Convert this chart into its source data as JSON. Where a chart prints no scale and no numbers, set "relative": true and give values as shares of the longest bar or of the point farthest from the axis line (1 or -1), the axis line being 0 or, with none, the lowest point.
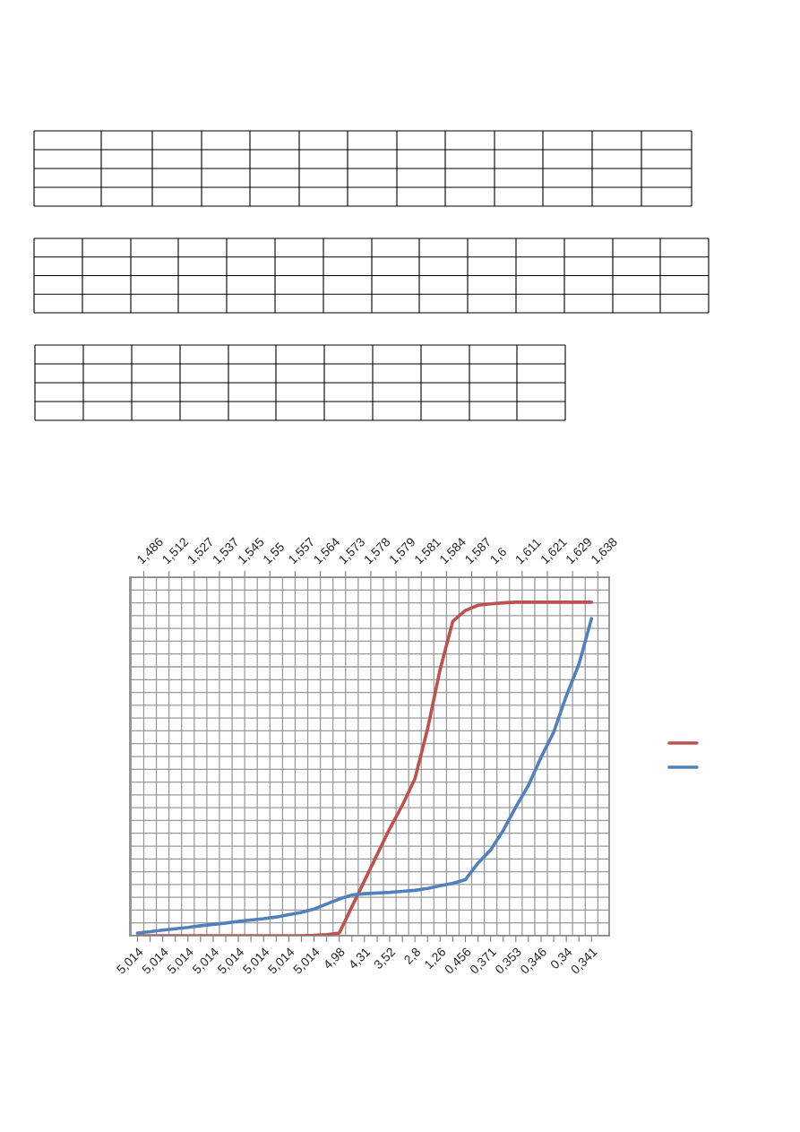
{
  "chart_data": {
    "type": "line",
    "relative": true,
    "categories": [
      "5,014",
      null,
      "5,014",
      null,
      "5,014",
      null,
      "5,014",
      null,
      "5,014",
      null,
      "5,014",
      null,
      "5,014",
      null,
      "5,014",
      null,
      "4,98",
      null,
      "4,31",
      null,
      "3,52",
      null,
      "2,8",
      null,
      "1,26",
      null,
      "0,456",
      null,
      "0,371",
      null,
      "0,353",
      null,
      "0,346",
      null,
      "0,34",
      null,
      "0,341"
    ],
    "annotations": [
      "1,486",
      "1,512",
      "1,527",
      "1,537",
      "1,545",
      "1,55",
      "1,557",
      "1,564",
      "1,573",
      "1,578",
      "1,579",
      "1,581",
      "1,584",
      "1,587",
      "1,6",
      "1,611",
      "1,621",
      "1,629",
      "1,638"
    ],
    "series": [
      {
        "color": "#c0504d",
        "values": [
          0,
          0,
          0,
          0,
          0,
          0,
          0,
          0,
          0,
          0,
          0,
          0,
          0,
          0,
          0.001,
          0.003,
          0.008,
          0.087,
          0.165,
          0.243,
          0.321,
          0.391,
          0.471,
          0.62,
          0.799,
          0.943,
          0.975,
          0.991,
          0.995,
          0.998,
          1,
          1,
          1,
          1,
          1,
          1,
          1
        ]
      },
      {
        "color": "#4f81bd",
        "values": [
          0.008,
          0.012,
          0.017,
          0.021,
          0.025,
          0.03,
          0.034,
          0.038,
          0.043,
          0.047,
          0.051,
          0.056,
          0.063,
          0.07,
          0.08,
          0.095,
          0.11,
          0.122,
          0.126,
          0.128,
          0.13,
          0.133,
          0.136,
          0.142,
          0.15,
          0.157,
          0.168,
          0.218,
          0.257,
          0.316,
          0.386,
          0.451,
          0.535,
          0.61,
          0.719,
          0.814,
          0.951
        ]
      }
    ],
    "grid": true,
    "line_style": "solid",
    "marker": "none"
  }
}
